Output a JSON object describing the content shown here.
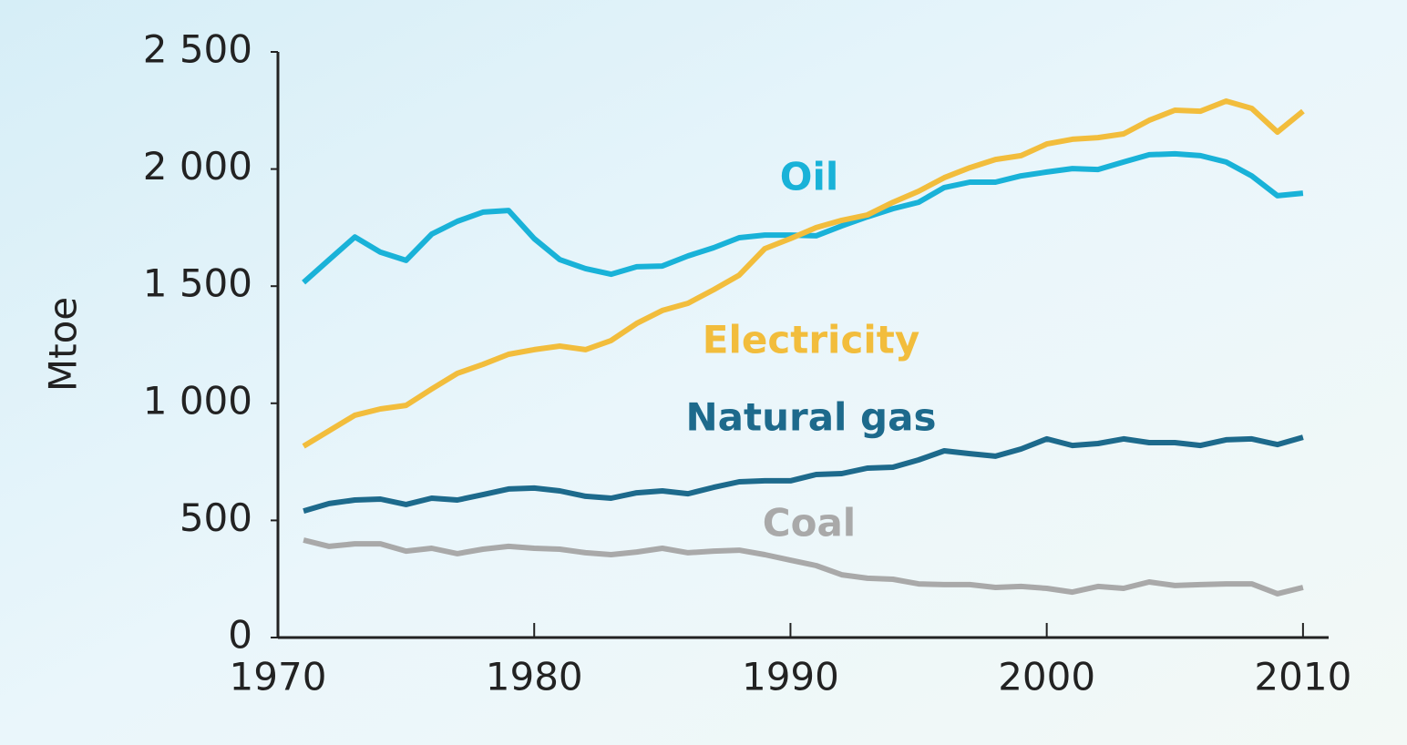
{
  "chart_data": {
    "type": "line",
    "y_label": "Mtoe",
    "x": [
      1971,
      1972,
      1973,
      1974,
      1975,
      1976,
      1977,
      1978,
      1979,
      1980,
      1981,
      1982,
      1983,
      1984,
      1985,
      1986,
      1987,
      1988,
      1989,
      1990,
      1991,
      1992,
      1993,
      1994,
      1995,
      1996,
      1997,
      1998,
      1999,
      2000,
      2001,
      2002,
      2003,
      2004,
      2005,
      2006,
      2007,
      2008,
      2009,
      2010
    ],
    "series": [
      {
        "name": "Oil",
        "color": "#19b2d8",
        "values": [
          1516,
          1613,
          1710,
          1645,
          1610,
          1722,
          1777,
          1816,
          1823,
          1703,
          1613,
          1575,
          1551,
          1583,
          1586,
          1629,
          1664,
          1707,
          1718,
          1718,
          1715,
          1757,
          1796,
          1831,
          1858,
          1921,
          1944,
          1944,
          1971,
          1987,
          2002,
          1998,
          2030,
          2061,
          2065,
          2057,
          2030,
          1971,
          1886,
          1897
        ]
      },
      {
        "name": "Electricity",
        "color": "#f2bd3c",
        "values": [
          817,
          883,
          949,
          976,
          991,
          1061,
          1128,
          1166,
          1209,
          1229,
          1244,
          1229,
          1268,
          1341,
          1396,
          1427,
          1485,
          1547,
          1660,
          1703,
          1750,
          1781,
          1804,
          1858,
          1905,
          1963,
          2006,
          2041,
          2057,
          2107,
          2127,
          2134,
          2150,
          2208,
          2251,
          2247,
          2290,
          2259,
          2158,
          2247
        ]
      },
      {
        "name": "Natural gas",
        "color": "#1d6a8c",
        "values": [
          540,
          572,
          587,
          591,
          568,
          595,
          587,
          610,
          634,
          638,
          626,
          603,
          595,
          618,
          626,
          614,
          641,
          665,
          669,
          669,
          696,
          700,
          723,
          727,
          758,
          797,
          785,
          774,
          805,
          848,
          820,
          828,
          848,
          832,
          832,
          820,
          844,
          848,
          824,
          855
        ]
      },
      {
        "name": "Coal",
        "color": "#a9a9a9",
        "values": [
          416,
          389,
          400,
          400,
          369,
          381,
          358,
          377,
          389,
          381,
          377,
          362,
          354,
          365,
          381,
          362,
          369,
          373,
          354,
          330,
          307,
          268,
          253,
          249,
          229,
          226,
          226,
          214,
          218,
          210,
          194,
          218,
          210,
          237,
          222,
          226,
          229,
          229,
          187,
          214
        ]
      }
    ],
    "xlim": [
      1970,
      2011
    ],
    "xticks": [
      1970,
      1980,
      1990,
      2000,
      2010
    ],
    "ylim": [
      0,
      2500
    ],
    "yticks": [
      0,
      500,
      {
        "value": 1000,
        "label": "1 000"
      },
      {
        "value": 1500,
        "label": "1 500"
      },
      {
        "value": 2000,
        "label": "2 000"
      },
      {
        "value": 2500,
        "label": "2 500"
      }
    ],
    "grid": false
  }
}
